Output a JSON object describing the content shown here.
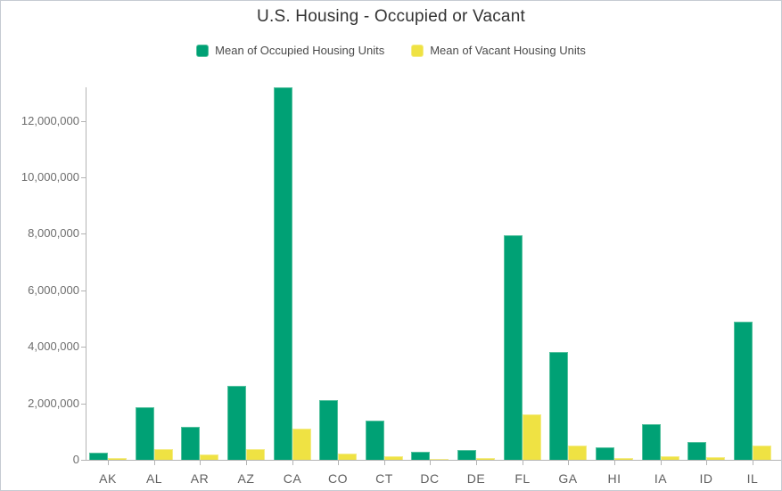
{
  "chart": {
    "title": "U.S. Housing - Occupied or Vacant",
    "legend": [
      {
        "label": "Mean of Occupied Housing Units",
        "color": "#00a175",
        "border_color": "#55c19e"
      },
      {
        "label": "Mean of Vacant Housing Units",
        "color": "#efe243",
        "border_color": "#f4ec86"
      }
    ]
  },
  "chart_data": {
    "type": "bar",
    "title": "U.S. Housing - Occupied or Vacant",
    "categories": [
      "AK",
      "AL",
      "AR",
      "AZ",
      "CA",
      "CO",
      "CT",
      "DC",
      "DE",
      "FL",
      "GA",
      "HI",
      "IA",
      "ID",
      "IL"
    ],
    "series": [
      {
        "name": "Mean of Occupied Housing Units",
        "color": "#00a175",
        "border_color": "#55c19e",
        "values": [
          250000,
          1870000,
          1160000,
          2630000,
          13200000,
          2120000,
          1380000,
          280000,
          350000,
          7950000,
          3820000,
          450000,
          1260000,
          630000,
          4880000
        ]
      },
      {
        "name": "Mean of Vacant Housing Units",
        "color": "#efe243",
        "border_color": "#f4ec86",
        "values": [
          55000,
          370000,
          200000,
          390000,
          1100000,
          210000,
          120000,
          35000,
          60000,
          1610000,
          500000,
          75000,
          130000,
          85000,
          490000
        ]
      }
    ],
    "xlabel": "",
    "ylabel": "",
    "ylim": [
      0,
      13200000
    ],
    "yticks": [
      0,
      2000000,
      4000000,
      6000000,
      8000000,
      10000000,
      12000000
    ],
    "ytick_labels": [
      "0",
      "2,000,000",
      "4,000,000",
      "6,000,000",
      "8,000,000",
      "10,000,000",
      "12,000,000"
    ],
    "grid": false,
    "legend_position": "top"
  }
}
